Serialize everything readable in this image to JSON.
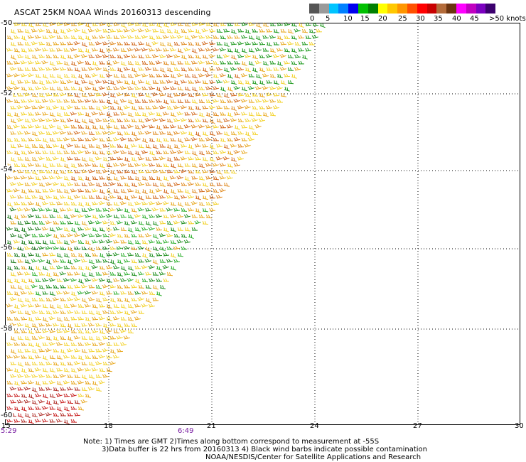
{
  "title": "ASCAT 25KM NOAA Winds 20160313 descending",
  "colorbar": {
    "colors": [
      "#555555",
      "#9a9a9a",
      "#00c4ff",
      "#0080ff",
      "#0000ee",
      "#00c000",
      "#008000",
      "#ffff00",
      "#ffc800",
      "#ff9600",
      "#ff5000",
      "#ff0000",
      "#c80000",
      "#b36b3a",
      "#6b3410",
      "#ff00ff",
      "#c000c0",
      "#7b00bf",
      "#3c006e"
    ],
    "labels": [
      "0",
      "5",
      "10",
      "15",
      "20",
      "25",
      "30",
      "35",
      "40",
      "45",
      ">50 knots"
    ]
  },
  "axes": {
    "latitudes": [
      "-50",
      "-52",
      "-54",
      "-56",
      "-58",
      "-60"
    ],
    "longitudes": [
      "15",
      "18",
      "21",
      "24",
      "27",
      "30"
    ]
  },
  "times": [
    "5:29",
    "6:49"
  ],
  "notes": [
    "Note: 1) Times are GMT 2)Times along bottom correspond to measurement at -55S",
    "3)Data buffer is 22 hrs from 20160313 4) Black wind barbs indicate possible contamination",
    "NOAA/NESDIS/Center for Satellite Applications and Research"
  ]
}
